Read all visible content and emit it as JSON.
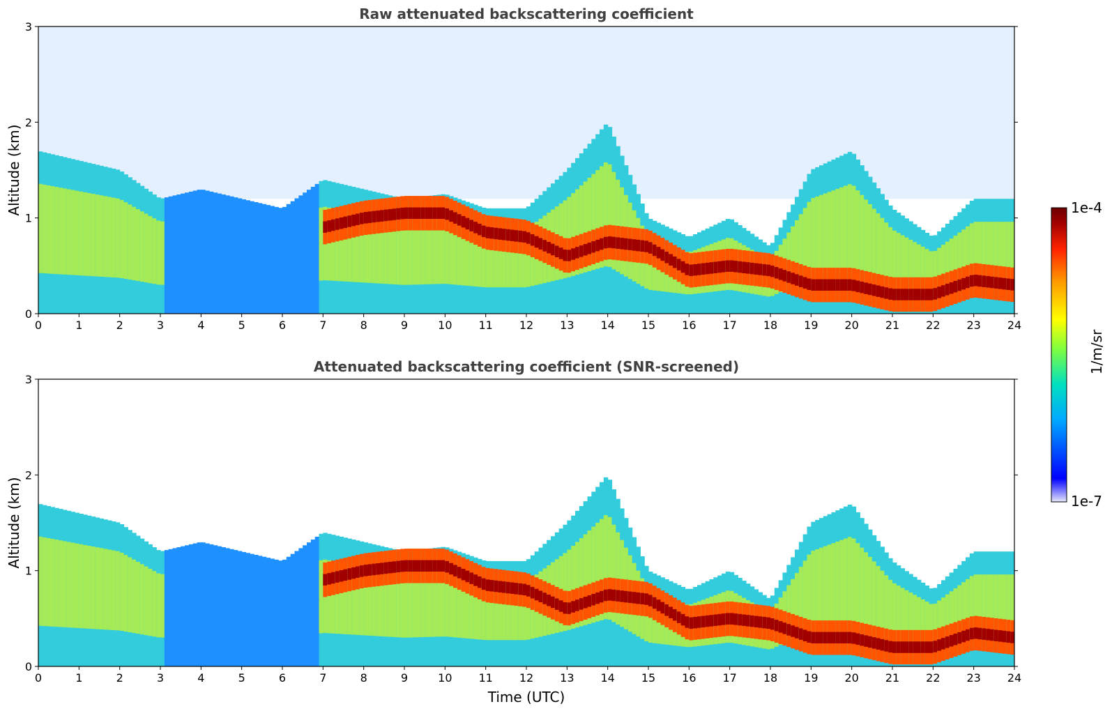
{
  "chart_data": [
    {
      "type": "heatmap",
      "title": "Raw attenuated backscattering coefficient",
      "xlabel": "",
      "ylabel": "Altitude (km)",
      "xlim": [
        0,
        24
      ],
      "ylim": [
        0,
        3
      ],
      "x_ticks": [
        "0",
        "1",
        "2",
        "3",
        "4",
        "5",
        "6",
        "7",
        "8",
        "9",
        "10",
        "11",
        "12",
        "13",
        "14",
        "15",
        "16",
        "17",
        "18",
        "19",
        "20",
        "21",
        "22",
        "23",
        "24"
      ],
      "y_ticks": [
        "0",
        "1",
        "2",
        "3"
      ],
      "screened": false
    },
    {
      "type": "heatmap",
      "title": "Attenuated backscattering coefficient (SNR-screened)",
      "xlabel": "Time (UTC)",
      "ylabel": "Altitude (km)",
      "xlim": [
        0,
        24
      ],
      "ylim": [
        0,
        3
      ],
      "x_ticks": [
        "0",
        "1",
        "2",
        "3",
        "4",
        "5",
        "6",
        "7",
        "8",
        "9",
        "10",
        "11",
        "12",
        "13",
        "14",
        "15",
        "16",
        "17",
        "18",
        "19",
        "20",
        "21",
        "22",
        "23",
        "24"
      ],
      "y_ticks": [
        "0",
        "1",
        "2",
        "3"
      ],
      "screened": true
    }
  ],
  "colorbar": {
    "label": "1/m/sr",
    "max_label": "1e-4",
    "min_label": "1e-7",
    "scale": "log",
    "range": [
      1e-07,
      0.0001
    ],
    "colormap": [
      "#e6e6fa",
      "#0000ff",
      "#00aaff",
      "#00e0c0",
      "#80ff40",
      "#ffff00",
      "#ff9900",
      "#ff2200",
      "#a00000",
      "#6b0000"
    ]
  },
  "structure": {
    "boundary_layer_top_km": [
      [
        0,
        1.7
      ],
      [
        1,
        1.6
      ],
      [
        2,
        1.5
      ],
      [
        3,
        1.2
      ],
      [
        4,
        1.3
      ],
      [
        5,
        1.2
      ],
      [
        6,
        1.1
      ],
      [
        7,
        1.4
      ],
      [
        8,
        1.3
      ],
      [
        9,
        1.2
      ],
      [
        10,
        1.25
      ],
      [
        11,
        1.1
      ],
      [
        12,
        1.1
      ],
      [
        13,
        1.5
      ],
      [
        14,
        2.0
      ],
      [
        15,
        1.0
      ],
      [
        16,
        0.8
      ],
      [
        17,
        1.0
      ],
      [
        18,
        0.7
      ],
      [
        19,
        1.5
      ],
      [
        20,
        1.7
      ],
      [
        21,
        1.1
      ],
      [
        22,
        0.8
      ],
      [
        23,
        1.2
      ],
      [
        24,
        1.2
      ]
    ],
    "aerosol_layer_km": [
      [
        7,
        0.9
      ],
      [
        8,
        1.0
      ],
      [
        9,
        1.05
      ],
      [
        10,
        1.05
      ],
      [
        11,
        0.85
      ],
      [
        12,
        0.8
      ],
      [
        13,
        0.6
      ],
      [
        14,
        0.75
      ],
      [
        15,
        0.7
      ],
      [
        16,
        0.45
      ],
      [
        17,
        0.5
      ],
      [
        18,
        0.45
      ],
      [
        19,
        0.3
      ],
      [
        20,
        0.3
      ],
      [
        21,
        0.2
      ],
      [
        22,
        0.2
      ],
      [
        23,
        0.35
      ],
      [
        24,
        0.3
      ]
    ]
  }
}
